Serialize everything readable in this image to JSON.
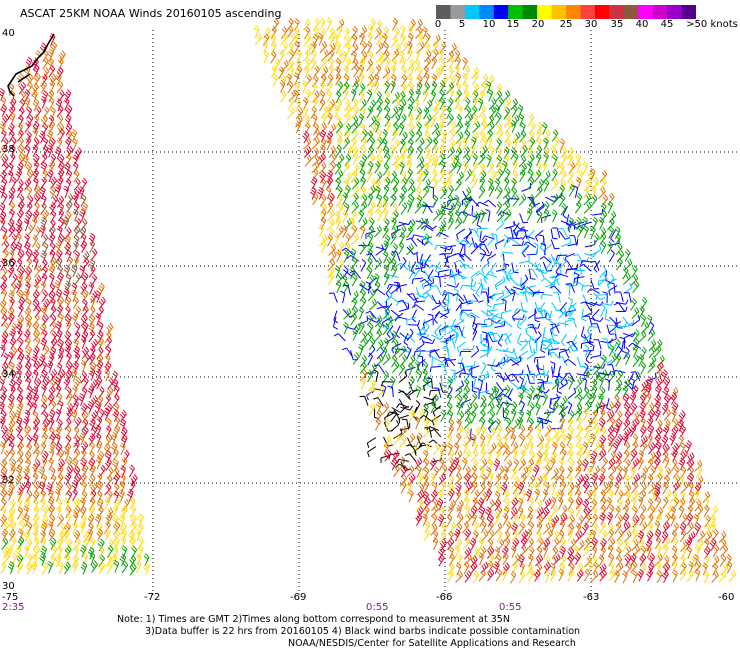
{
  "title": "ASCAT 25KM NOAA Winds 20160105 ascending",
  "colorbar": {
    "colors": [
      "#5c5c5c",
      "#9a9a9a",
      "#00c8ff",
      "#0088ff",
      "#0000ff",
      "#00c000",
      "#008800",
      "#ffff00",
      "#ffc000",
      "#ff8800",
      "#ff4040",
      "#ff0000",
      "#cc3344",
      "#8b5a3c",
      "#ff00ff",
      "#cc00cc",
      "#9900cc",
      "#550088"
    ],
    "labels": [
      "0",
      "5",
      "10",
      "15",
      "20",
      "25",
      "30",
      "35",
      "40",
      "45",
      ">50 knots"
    ]
  },
  "axes": {
    "lat_labels": [
      "40",
      "38",
      "36",
      "34",
      "32",
      "30"
    ],
    "lon_labels": [
      "-75",
      "-72",
      "-69",
      "-66",
      "-63",
      "-60"
    ]
  },
  "times": {
    "left": "2:35",
    "mid1": "0:55",
    "mid2": "0:55"
  },
  "notes": {
    "line1": "Note: 1) Times are GMT  2)Times along bottom correspond to measurement at 35N",
    "line2": "3)Data buffer is 22 hrs from 20160105  4) Black wind barbs indicate possible contamination",
    "line3": "NOAA/NESDIS/Center for Satellite Applications and Research"
  },
  "speed_colors": {
    "low": "#000000",
    "cyan": "#00c8ff",
    "blue": "#0000ff",
    "green": "#00a000",
    "yellow": "#ffd800",
    "orange": "#e07000",
    "red": "#e00030",
    "brown": "#8b5a3c"
  }
}
